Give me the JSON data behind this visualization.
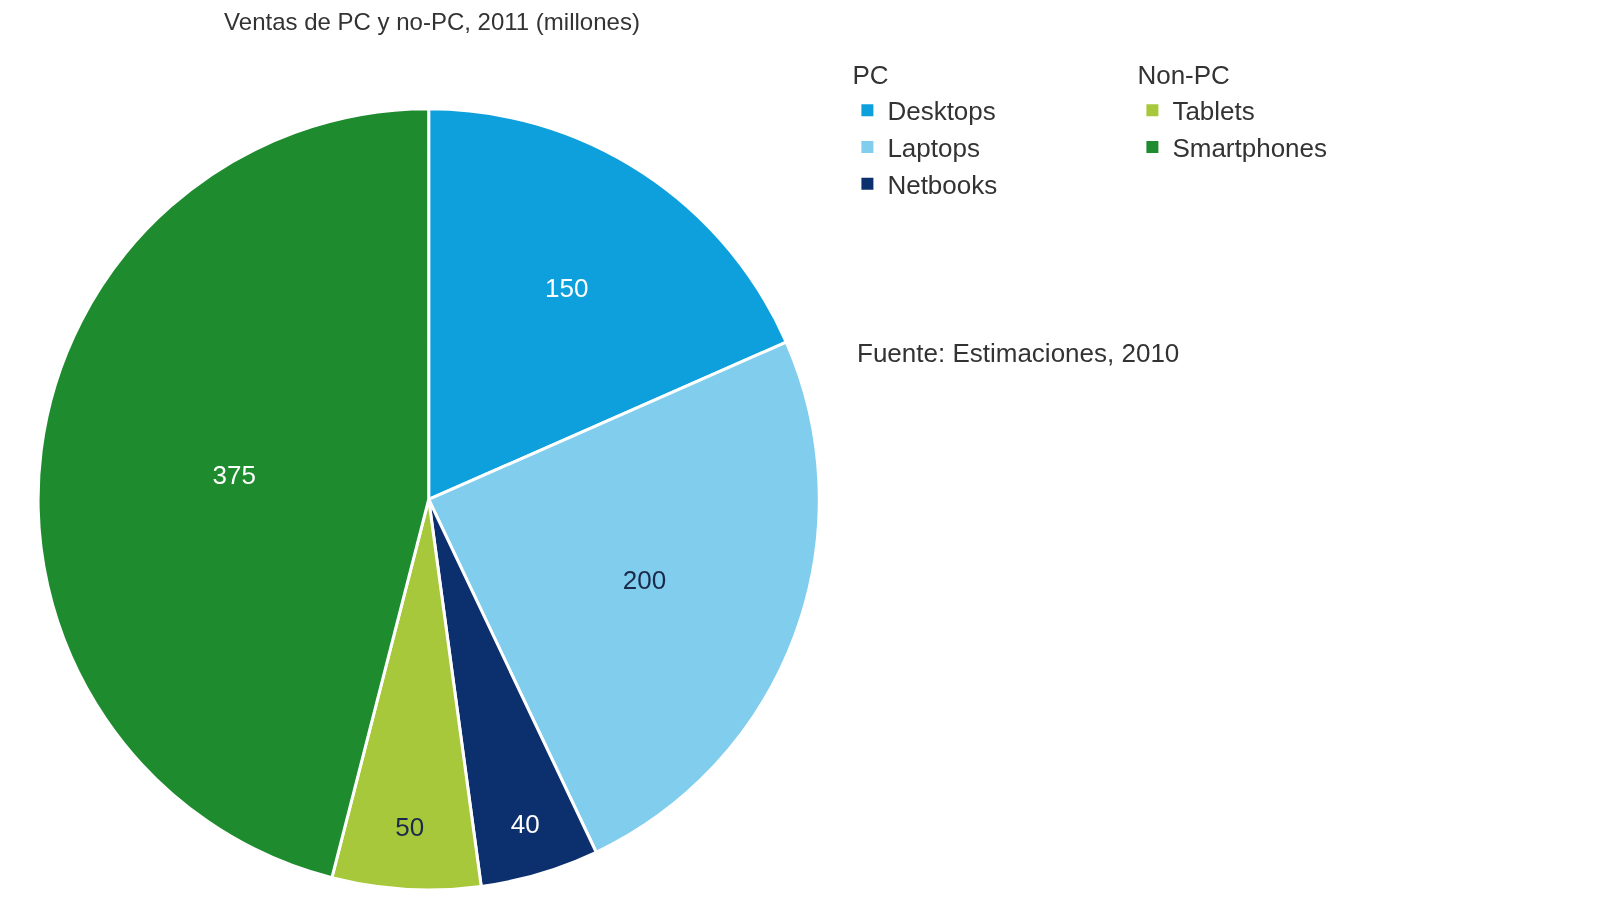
{
  "chart_data": {
    "type": "pie",
    "title": "Ventas de PC y no-PC, 2011 (millones)",
    "categories": [
      "Desktops",
      "Laptops",
      "Netbooks",
      "Tablets",
      "Smartphones"
    ],
    "values": [
      150,
      200,
      40,
      50,
      375
    ],
    "colors": [
      "#0ea0dc",
      "#80cdee",
      "#0c2f6e",
      "#a8c83c",
      "#1e8c2e"
    ],
    "data_labels": true,
    "legend": "top right",
    "annotations": [
      {
        "text": "PC",
        "x": "Desktops"
      },
      {
        "text": "Non-PC",
        "x": "Tablets"
      },
      "Fuente: Estimaciones, 2010"
    ]
  }
}
